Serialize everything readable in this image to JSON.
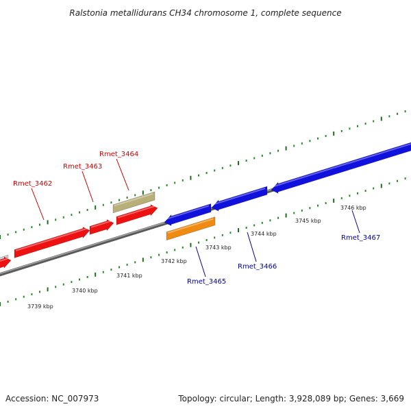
{
  "title": "Ralstonia metallidurans CH34 chromosome 1, complete sequence",
  "footer": {
    "accession": "Accession: NC_007973",
    "summary": "Topology: circular; Length: 3,928,089 bp; Genes: 3,669"
  },
  "colors": {
    "backbone": "#777777",
    "tick_major": "#1c6e1c",
    "tick_minor": "#2a8a2a",
    "label_red": "#cc0000",
    "label_blue": "#000099",
    "gene_red": "#ee1111",
    "gene_blue": "#1111dd",
    "gene_olive": "#b8b078",
    "gene_orange": "#f08a10",
    "gene_grey": "#c8c8c8"
  },
  "scale": {
    "unit": "kbp",
    "tick_labels": [
      "3739 kbp",
      "3740 kbp",
      "3741 kbp",
      "3742 kbp",
      "3743 kbp",
      "3744 kbp",
      "3745 kbp",
      "3746 kbp"
    ]
  },
  "genes": [
    {
      "id": "gene-grey-partial",
      "label": "",
      "color": "gene_grey",
      "strand": "top"
    },
    {
      "id": "gene-red-a",
      "label": "",
      "color": "gene_red",
      "strand": "bottom"
    },
    {
      "id": "Rmet_3462",
      "label": "Rmet_3462",
      "color": "gene_red",
      "strand": "top"
    },
    {
      "id": "Rmet_3463",
      "label": "Rmet_3463",
      "color": "gene_red",
      "strand": "top"
    },
    {
      "id": "Rmet_3464",
      "label": "Rmet_3464",
      "color": "gene_red",
      "strand": "top"
    },
    {
      "id": "gene-olive",
      "label": "",
      "color": "gene_olive",
      "strand": "top"
    },
    {
      "id": "Rmet_3465",
      "label": "Rmet_3465",
      "color": "gene_orange",
      "strand": "bottom"
    },
    {
      "id": "gene-blue-a",
      "label": "",
      "color": "gene_blue",
      "strand": "top"
    },
    {
      "id": "Rmet_3466",
      "label": "Rmet_3466",
      "color": "gene_blue",
      "strand": "top"
    },
    {
      "id": "Rmet_3467",
      "label": "Rmet_3467",
      "color": "gene_blue",
      "strand": "top"
    }
  ]
}
